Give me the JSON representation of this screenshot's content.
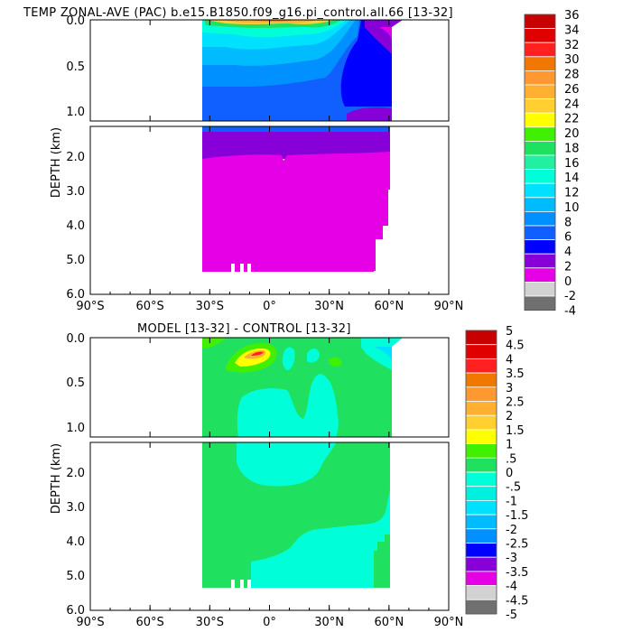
{
  "chart_data": [
    {
      "type": "heatmap",
      "title": "TEMP ZONAL-AVE (PAC) b.e15.B1850.f09_g16.pi_control.all.66 [13-32]",
      "ylabel": "DEPTH (km)",
      "xlim": [
        -90,
        90
      ],
      "ylim": [
        0,
        6
      ],
      "depth_break_km": 1.15,
      "x_ticks": [
        "90°S",
        "60°S",
        "30°S",
        "0°",
        "30°N",
        "60°N",
        "90°N"
      ],
      "y_ticks_upper": [
        "0.0",
        "0.5",
        "1.0"
      ],
      "y_ticks_lower": [
        "2.0",
        "3.0",
        "4.0",
        "5.0",
        "6.0"
      ],
      "data_extent": {
        "lat_min": -34,
        "lat_max": 62,
        "depth_max_km": 5.4
      },
      "colorbar_labels": [
        "36",
        "34",
        "32",
        "30",
        "28",
        "26",
        "24",
        "22",
        "20",
        "18",
        "16",
        "14",
        "12",
        "10",
        "8",
        "6",
        "4",
        "2",
        "0",
        "-2",
        "-4"
      ],
      "colorbar_colors": [
        "#c80000",
        "#e00000",
        "#ff2020",
        "#f07800",
        "#ff9830",
        "#ffb030",
        "#ffd030",
        "#ffff00",
        "#40f000",
        "#20e060",
        "#20f0a0",
        "#00ffd8",
        "#00e0ff",
        "#00bcff",
        "#0090ff",
        "#1060ff",
        "#0000ff",
        "#8800d8",
        "#e600e6",
        "#d2d2d2",
        "#707070"
      ]
    },
    {
      "type": "heatmap",
      "title": "MODEL [13-32] - CONTROL [13-32]",
      "ylabel": "DEPTH (km)",
      "xlim": [
        -90,
        90
      ],
      "ylim": [
        0,
        6
      ],
      "depth_break_km": 1.15,
      "x_ticks": [
        "90°S",
        "60°S",
        "30°S",
        "0°",
        "30°N",
        "60°N",
        "90°N"
      ],
      "y_ticks_upper": [
        "0.0",
        "0.5",
        "1.0"
      ],
      "y_ticks_lower": [
        "2.0",
        "3.0",
        "4.0",
        "5.0",
        "6.0"
      ],
      "data_extent": {
        "lat_min": -34,
        "lat_max": 62,
        "depth_max_km": 5.4
      },
      "colorbar_labels": [
        "5",
        "4.5",
        "4",
        "3.5",
        "3",
        "2.5",
        "2",
        "1.5",
        "1",
        ".5",
        "0",
        "-.5",
        "-1",
        "-1.5",
        "-2",
        "-2.5",
        "-3",
        "-3.5",
        "-4",
        "-4.5",
        "-5"
      ],
      "colorbar_colors": [
        "#c80000",
        "#e00000",
        "#ff2020",
        "#f07800",
        "#ff9830",
        "#ffb030",
        "#ffd030",
        "#ffff00",
        "#40f000",
        "#20e060",
        "#00ffd8",
        "#00f0e0",
        "#00e0ff",
        "#00bcff",
        "#0090ff",
        "#0000ff",
        "#8800d8",
        "#e600e6",
        "#d2d2d2",
        "#707070"
      ]
    }
  ]
}
